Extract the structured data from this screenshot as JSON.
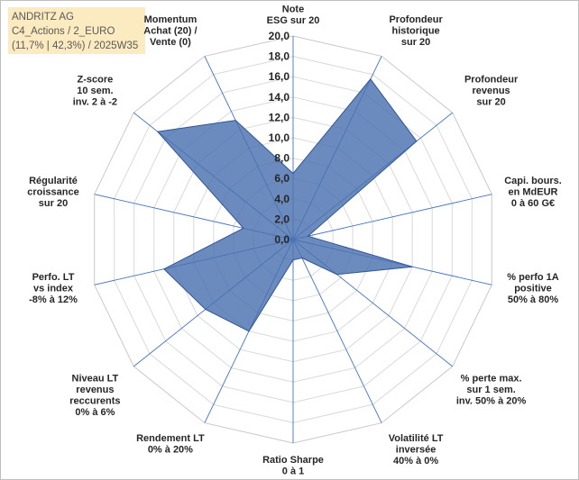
{
  "header": {
    "line1": "ANDRITZ AG",
    "line2": "C4_Actions / 2_EURO",
    "line3": "(11,7% | 42,3%) / 2025W35"
  },
  "chart_data": {
    "type": "radar",
    "rmin": 0,
    "rmax": 20,
    "tick_step": 2,
    "tick_labels": [
      "0,0",
      "2,0",
      "4,0",
      "6,0",
      "8,0",
      "10,0",
      "12,0",
      "14,0",
      "16,0",
      "18,0",
      "20,0"
    ],
    "axes": [
      {
        "label": [
          "Note",
          "ESG sur 20"
        ],
        "value": 6.5
      },
      {
        "label": [
          "Profondeur",
          "historique",
          "sur 20"
        ],
        "value": 17.5
      },
      {
        "label": [
          "Profondeur",
          "revenus",
          "sur 20"
        ],
        "value": 15.5
      },
      {
        "label": [
          "Capi. bours.",
          "en MdEUR",
          "0 à 60 G€"
        ],
        "value": 1.5
      },
      {
        "label": [
          "% perfo 1A",
          "positive",
          "50% à 80%"
        ],
        "value": 12.0
      },
      {
        "label": [
          "% perte max.",
          "sur 1 sem.",
          "inv. 50% à 20%"
        ],
        "value": 5.5
      },
      {
        "label": [
          "Volatilité LT",
          "inversée",
          "40% à 0%"
        ],
        "value": 2.0
      },
      {
        "label": [
          "Ratio Sharpe",
          "0 à 1"
        ],
        "value": 2.0
      },
      {
        "label": [
          "Rendement LT",
          "0% à 20%"
        ],
        "value": 10.0
      },
      {
        "label": [
          "Niveau LT",
          "revenus",
          "reccurents",
          "0% à 6%"
        ],
        "value": 11.0
      },
      {
        "label": [
          "Perfo. LT",
          "vs index",
          "-8% à 12%"
        ],
        "value": 13.0
      },
      {
        "label": [
          "Régularité",
          "croissance",
          "sur 20"
        ],
        "value": 5.0
      },
      {
        "label": [
          "Z-score",
          "10 sem.",
          "inv. 2 à -2"
        ],
        "value": 17.0
      },
      {
        "label": [
          "Momentum",
          "Achat (20) /",
          "Vente (0)"
        ],
        "value": 13.0
      }
    ],
    "colors": {
      "fill": "#4a72b0",
      "stroke": "#2f5597",
      "grid": "#d9d9d9",
      "spoke": "#4472c4",
      "background": "#ffffff"
    }
  }
}
